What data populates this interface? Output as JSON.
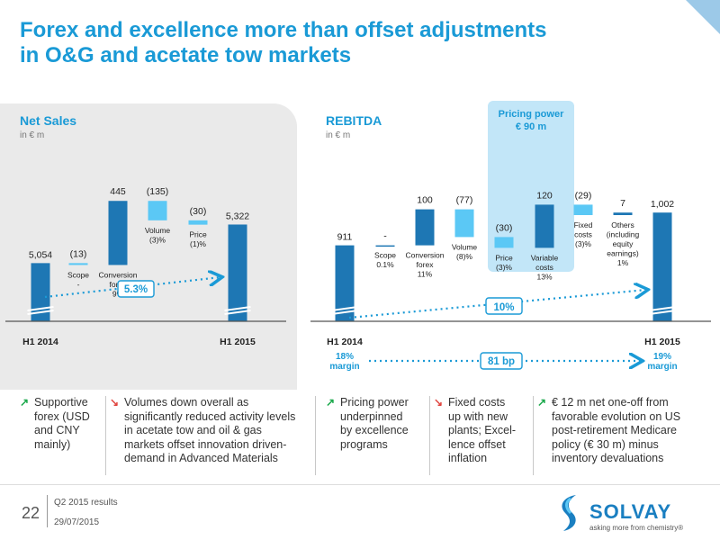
{
  "title_line1": "Forex and excellence more than offset adjustments",
  "title_line2": "in O&G and acetate tow markets",
  "left": {
    "title": "Net Sales",
    "unit": "in € m"
  },
  "right": {
    "title": "REBITDA",
    "unit": "in € m"
  },
  "pricing_power": {
    "line1": "Pricing power",
    "line2": "€ 90 m"
  },
  "colors": {
    "accent": "#1a9ad6",
    "bar_dark": "#1e77b4",
    "bar_light": "#5bc8f5",
    "callout": "#1a9ad6",
    "panel": "#eaeaea"
  },
  "chart_data": [
    {
      "type": "bar",
      "subtype": "waterfall",
      "title": "Net Sales",
      "unit": "in € m",
      "categories": [
        "H1 2014",
        "Scope",
        "Conversion forex",
        "Volume",
        "Price",
        "H1 2015"
      ],
      "values": [
        5054,
        -13,
        445,
        -135,
        -30,
        5322
      ],
      "value_labels": [
        "5,054",
        "(13)",
        "445",
        "(135)",
        "(30)",
        "5,322"
      ],
      "category_labels": [
        [
          "H1 2014"
        ],
        [
          "Scope",
          "-"
        ],
        [
          "Conversion",
          "forex",
          "9%"
        ],
        [
          "Volume",
          "(3)%"
        ],
        [
          "Price",
          "(1)%"
        ],
        [
          "H1 2015"
        ]
      ],
      "growth_callout": "5.3%"
    },
    {
      "type": "bar",
      "subtype": "waterfall",
      "title": "REBITDA",
      "unit": "in € m",
      "categories": [
        "H1 2014",
        "Scope",
        "Conversion forex",
        "Volume",
        "Price",
        "Variable costs",
        "Fixed costs",
        "Others (including equity earnings)",
        "H1 2015"
      ],
      "values": [
        911,
        0,
        100,
        -77,
        -30,
        120,
        -29,
        7,
        1002
      ],
      "value_labels": [
        "911",
        "-",
        "100",
        "(77)",
        "(30)",
        "120",
        "(29)",
        "7",
        "1,002"
      ],
      "category_labels": [
        [
          "H1 2014"
        ],
        [
          "Scope",
          "0.1%"
        ],
        [
          "Conversion",
          "forex",
          "11%"
        ],
        [
          "Volume",
          "(8)%"
        ],
        [
          "Price",
          "(3)%"
        ],
        [
          "Variable",
          "costs",
          "13%"
        ],
        [
          "Fixed",
          "costs",
          "(3)%"
        ],
        [
          "Others",
          "(including",
          "equity",
          "earnings)",
          "1%"
        ],
        [
          "H1 2015"
        ]
      ],
      "growth_callout": "10%",
      "margin_start": [
        "18%",
        "margin"
      ],
      "margin_end": [
        "19%",
        "margin"
      ],
      "margin_callout": "81 bp"
    }
  ],
  "bullets": [
    {
      "dir": "up",
      "arrow": "↗",
      "lines": [
        "Supportive",
        "forex (USD",
        "and CNY",
        "mainly)"
      ]
    },
    {
      "dir": "down",
      "arrow": "↘",
      "lines": [
        "Volumes down overall as",
        "significantly reduced activity levels",
        "in acetate tow and oil & gas",
        "markets offset innovation driven-",
        "demand in Advanced Materials"
      ]
    },
    {
      "dir": "up",
      "arrow": "↗",
      "lines": [
        "Pricing power",
        "underpinned",
        "by excellence",
        "programs"
      ]
    },
    {
      "dir": "down",
      "arrow": "↘",
      "lines": [
        "Fixed costs",
        "up with new",
        "plants; Excel-",
        "lence offset",
        "inflation"
      ]
    },
    {
      "dir": "up",
      "arrow": "↗",
      "lines": [
        "€ 12 m net one-off from",
        "favorable evolution on US",
        "post-retirement Medicare",
        "policy (€ 30 m) minus",
        "inventory devaluations"
      ]
    }
  ],
  "footer": {
    "page": "22",
    "line1": "Q2 2015 results",
    "line2": "29/07/2015"
  },
  "logo": {
    "name": "SOLVAY",
    "tagline": "asking more from chemistry®"
  }
}
